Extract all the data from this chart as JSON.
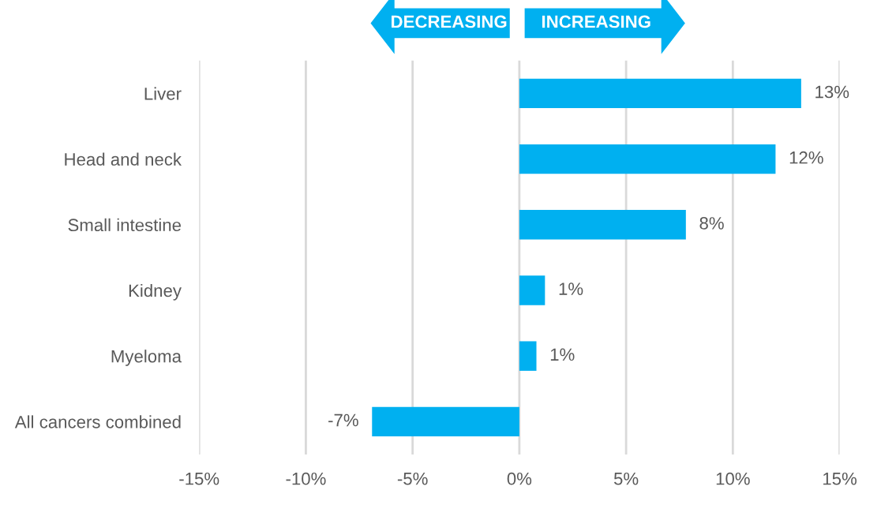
{
  "chart_data": {
    "type": "bar",
    "orientation": "horizontal",
    "categories": [
      "Liver",
      "Head and neck",
      "Small intestine",
      "Kidney",
      "Myeloma",
      "All cancers combined"
    ],
    "values": [
      13.2,
      12.0,
      7.8,
      1.2,
      0.8,
      -6.9
    ],
    "value_labels": [
      "13%",
      "12%",
      "8%",
      "1%",
      "1%",
      "-7%"
    ],
    "color": "#00b0f0",
    "xlim": [
      -15,
      15
    ],
    "xticks": [
      {
        "value": -15,
        "label": "-15%"
      },
      {
        "value": -10,
        "label": "-10%"
      },
      {
        "value": -5,
        "label": "-5%"
      },
      {
        "value": 0,
        "label": "0%"
      },
      {
        "value": 5,
        "label": "5%"
      },
      {
        "value": 10,
        "label": "10%"
      },
      {
        "value": 15,
        "label": "15%"
      }
    ],
    "grid": "x",
    "legend": false,
    "annotations": [
      "DECREASING",
      "INCREASING"
    ]
  }
}
